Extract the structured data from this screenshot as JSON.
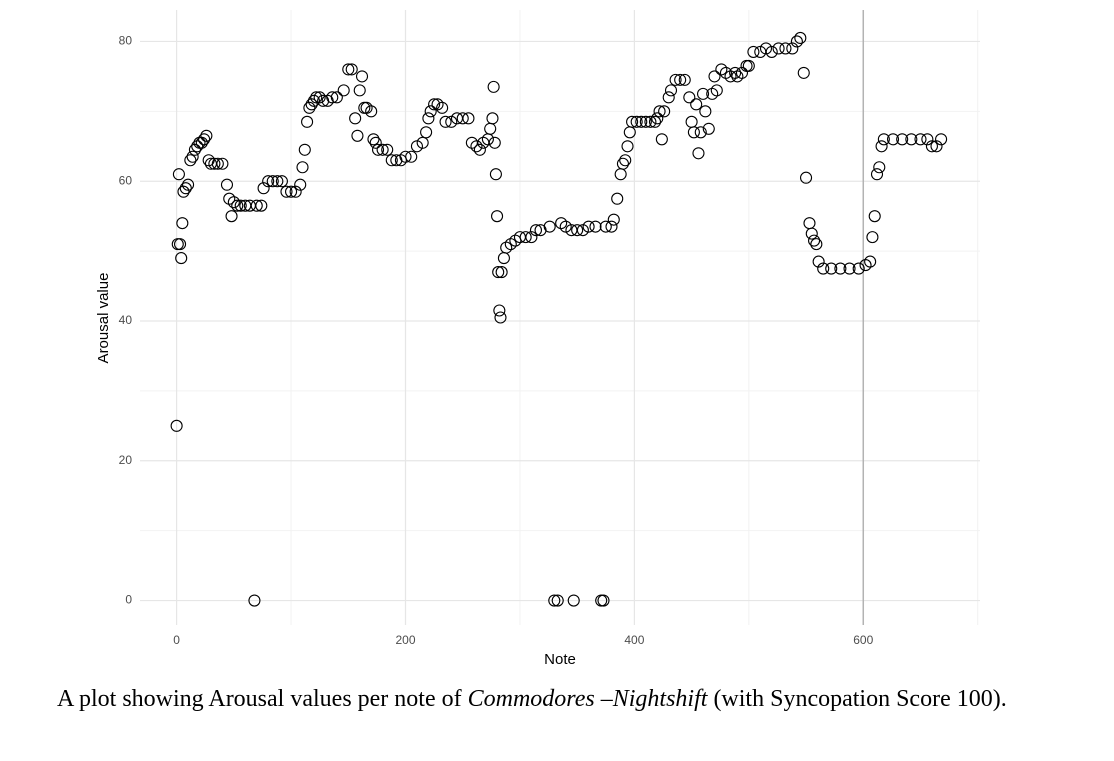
{
  "chart_data": {
    "type": "scatter",
    "xlabel": "Note",
    "ylabel": "Arousal value",
    "caption": {
      "before": "A plot showing Arousal values per note of ",
      "italic": "Commodores –Nightshift",
      "after": " (with Syncopation Score 100)."
    },
    "x": [
      0,
      1,
      2,
      3,
      4,
      5,
      6,
      8,
      10,
      12,
      14,
      16,
      18,
      20,
      22,
      24,
      26,
      28,
      30,
      33,
      36,
      40,
      44,
      46,
      48,
      50,
      53,
      56,
      60,
      64,
      68,
      70,
      74,
      76,
      80,
      84,
      88,
      92,
      96,
      100,
      104,
      108,
      110,
      112,
      114,
      116,
      118,
      120,
      122,
      125,
      128,
      132,
      136,
      140,
      146,
      150,
      153,
      156,
      158,
      160,
      162,
      164,
      166,
      170,
      172,
      174,
      176,
      180,
      184,
      188,
      192,
      196,
      200,
      205,
      210,
      215,
      218,
      220,
      222,
      225,
      228,
      232,
      235,
      240,
      245,
      250,
      255,
      258,
      262,
      265,
      268,
      272,
      274,
      276,
      277,
      278,
      279,
      280,
      281,
      282,
      283,
      284,
      286,
      288,
      292,
      296,
      300,
      305,
      310,
      314,
      318,
      326,
      330,
      333,
      336,
      340,
      345,
      347,
      350,
      355,
      360,
      366,
      371,
      373,
      375,
      380,
      382,
      385,
      388,
      390,
      392,
      394,
      396,
      398,
      402,
      406,
      410,
      414,
      418,
      420,
      422,
      424,
      426,
      430,
      432,
      436,
      440,
      444,
      448,
      450,
      452,
      454,
      456,
      458,
      460,
      462,
      465,
      468,
      470,
      472,
      476,
      480,
      484,
      488,
      490,
      494,
      498,
      500,
      504,
      510,
      515,
      520,
      526,
      532,
      538,
      542,
      545,
      548,
      550,
      553,
      555,
      557,
      559,
      561,
      565,
      572,
      580,
      588,
      596,
      602,
      606,
      608,
      610,
      612,
      614,
      616,
      618,
      626,
      634,
      642,
      650,
      656,
      660,
      664,
      668
    ],
    "values": [
      25,
      51,
      61,
      51,
      49,
      54,
      58.5,
      59,
      59.5,
      63,
      63.5,
      64.5,
      65,
      65.5,
      65.5,
      66,
      66.5,
      63,
      62.5,
      62.5,
      62.5,
      62.5,
      59.5,
      57.5,
      55,
      57,
      56.5,
      56.5,
      56.5,
      56.5,
      0,
      56.5,
      56.5,
      59,
      60,
      60,
      60,
      60,
      58.5,
      58.5,
      58.5,
      59.5,
      62,
      64.5,
      68.5,
      70.5,
      71,
      71.5,
      72,
      72,
      71.5,
      71.5,
      72,
      72,
      73,
      76,
      76,
      69,
      66.5,
      73,
      75,
      70.5,
      70.5,
      70,
      66,
      65.5,
      64.5,
      64.5,
      64.5,
      63,
      63,
      63,
      63.5,
      63.5,
      65,
      65.5,
      67,
      69,
      70,
      71,
      71,
      70.5,
      68.5,
      68.5,
      69,
      69,
      69,
      65.5,
      65,
      64.5,
      65.5,
      66,
      67.5,
      69,
      73.5,
      65.5,
      61,
      55,
      47,
      41.5,
      40.5,
      47,
      49,
      50.5,
      51,
      51.5,
      52,
      52,
      52,
      53,
      53,
      53.5,
      0,
      0,
      54,
      53.5,
      53,
      0,
      53,
      53,
      53.5,
      53.5,
      0,
      0,
      53.5,
      53.5,
      54.5,
      57.5,
      61,
      62.5,
      63,
      65,
      67,
      68.5,
      68.5,
      68.5,
      68.5,
      68.5,
      68.5,
      69,
      70,
      66,
      70,
      72,
      73,
      74.5,
      74.5,
      74.5,
      72,
      68.5,
      67,
      71,
      64,
      67,
      72.5,
      70,
      67.5,
      72.5,
      75,
      73,
      76,
      75.5,
      75,
      75.5,
      75,
      75.5,
      76.5,
      76.5,
      78.5,
      78.5,
      79,
      78.5,
      79,
      79,
      79,
      80,
      80.5,
      75.5,
      60.5,
      54,
      52.5,
      51.5,
      51,
      48.5,
      47.5,
      47.5,
      47.5,
      47.5,
      47.5,
      48,
      48.5,
      52,
      55,
      61,
      62,
      65,
      66,
      66,
      66,
      66,
      66,
      66,
      65,
      65,
      66
    ],
    "xlim": [
      -32,
      702
    ],
    "ylim": [
      -3.5,
      84.5
    ],
    "xticks": [
      0,
      200,
      400,
      600
    ],
    "yticks": [
      0,
      20,
      40,
      60,
      80
    ],
    "xminor": [
      100,
      300,
      500,
      700
    ],
    "yminor": [
      10,
      30,
      50,
      70
    ],
    "vline": 600,
    "grid": true,
    "color": "#000000"
  }
}
